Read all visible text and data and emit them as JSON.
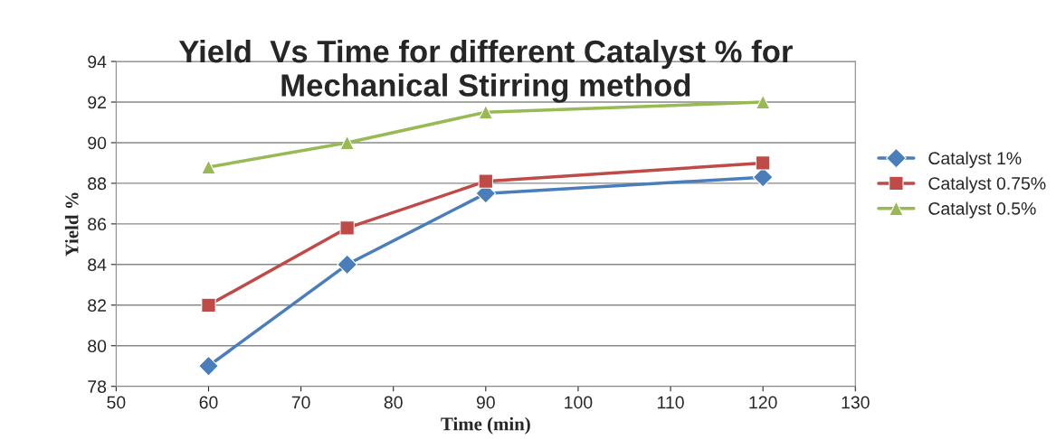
{
  "chart_data": {
    "type": "line",
    "title": "Yield  Vs Time for different Catalyst % for\nMechanical Stirring method",
    "xlabel": "Time (min)",
    "ylabel": "Yield %",
    "x": [
      60,
      75,
      90,
      120
    ],
    "series": [
      {
        "name": "Catalyst 1%",
        "color": "#4a7ebb",
        "marker": "diamond",
        "values": [
          79,
          84,
          87.5,
          88.3
        ]
      },
      {
        "name": "Catalyst 0.75%",
        "color": "#be4b48",
        "marker": "square",
        "values": [
          82,
          85.8,
          88.1,
          89
        ]
      },
      {
        "name": "Catalyst 0.5%",
        "color": "#98b954",
        "marker": "triangle",
        "values": [
          88.8,
          90,
          91.5,
          92
        ]
      }
    ],
    "xlim": [
      50,
      130
    ],
    "xticks": [
      50,
      60,
      70,
      80,
      90,
      100,
      110,
      120,
      130
    ],
    "ylim": [
      78,
      94
    ],
    "yticks": [
      78,
      80,
      82,
      84,
      86,
      88,
      90,
      92,
      94
    ],
    "grid": "y",
    "legend": "right",
    "line_style": "solid"
  }
}
